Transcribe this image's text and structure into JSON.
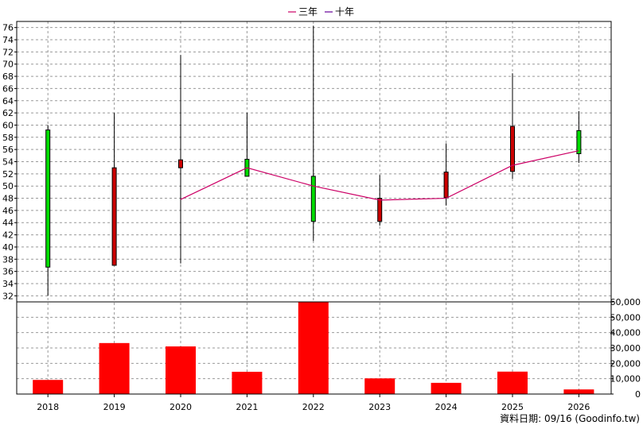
{
  "chart_data": {
    "type": "candlestick",
    "legend": [
      {
        "label": "三年",
        "color": "#cc0066"
      },
      {
        "label": "十年",
        "color": "#660099"
      }
    ],
    "categories": [
      "2018",
      "2019",
      "2020",
      "2021",
      "2022",
      "2023",
      "2024",
      "2025",
      "2026"
    ],
    "price_axis": {
      "ylim": [
        31,
        77
      ],
      "ticks": [
        32,
        34,
        36,
        38,
        40,
        42,
        44,
        46,
        48,
        50,
        52,
        54,
        56,
        58,
        60,
        62,
        64,
        66,
        68,
        70,
        72,
        74,
        76
      ]
    },
    "candles": [
      {
        "year": "2018",
        "open": 36.7,
        "close": 59.2,
        "high": 60.0,
        "low": 32.0,
        "color": "#00dd00"
      },
      {
        "year": "2019",
        "open": 53.0,
        "close": 37.0,
        "high": 62.0,
        "low": 37.0,
        "color": "#cc0000"
      },
      {
        "year": "2020",
        "open": 54.3,
        "close": 53.0,
        "high": 71.5,
        "low": 37.3,
        "color": "#cc0000"
      },
      {
        "year": "2021",
        "open": 51.6,
        "close": 54.4,
        "high": 62.0,
        "low": 51.6,
        "color": "#00dd00"
      },
      {
        "year": "2022",
        "open": 44.2,
        "close": 51.6,
        "high": 76.3,
        "low": 41.0,
        "color": "#00dd00"
      },
      {
        "year": "2023",
        "open": 48.0,
        "close": 44.2,
        "high": 51.8,
        "low": 43.5,
        "color": "#cc0000"
      },
      {
        "year": "2024",
        "open": 52.3,
        "close": 48.1,
        "high": 57.0,
        "low": 46.8,
        "color": "#cc0000"
      },
      {
        "year": "2025",
        "open": 59.8,
        "close": 52.4,
        "high": 68.5,
        "low": 51.2,
        "color": "#cc0000"
      },
      {
        "year": "2026",
        "open": 55.3,
        "close": 59.1,
        "high": 62.3,
        "low": 53.8,
        "color": "#00dd00"
      }
    ],
    "three_year_line": {
      "name": "三年",
      "color": "#cc0066",
      "points": [
        {
          "year": "2020",
          "value": 47.8
        },
        {
          "year": "2021",
          "value": 53.0
        },
        {
          "year": "2022",
          "value": 50.0
        },
        {
          "year": "2023",
          "value": 47.7
        },
        {
          "year": "2024",
          "value": 48.0
        },
        {
          "year": "2025",
          "value": 53.4
        },
        {
          "year": "2026",
          "value": 55.8
        }
      ]
    },
    "volume_axis": {
      "ylim": [
        0,
        60000
      ],
      "ticks": [
        "0",
        "10,000",
        "20,000",
        "30,000",
        "40,000",
        "50,000",
        "60,000"
      ]
    },
    "volume": [
      9200,
      33200,
      31000,
      14500,
      61000,
      10200,
      7300,
      14600,
      3000
    ],
    "volume_color": "#ff0000",
    "grid": true,
    "credit": "資料日期: 09/16  (Goodinfo.tw)"
  }
}
